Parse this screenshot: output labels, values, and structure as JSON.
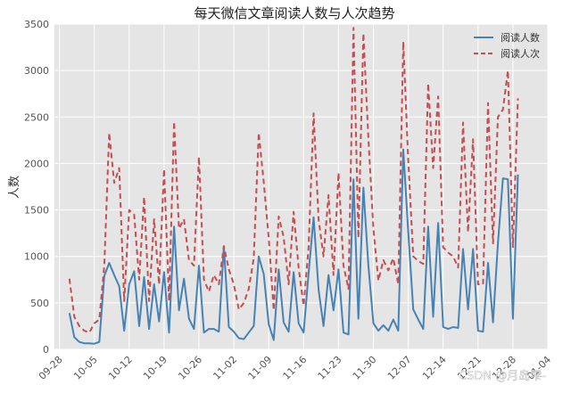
{
  "chart_data": {
    "type": "line",
    "title": "每天微信文章阅读人数与人次趋势",
    "xlabel": "",
    "ylabel": "人数",
    "ylim": [
      0,
      3500
    ],
    "yticks": [
      0,
      500,
      1000,
      1500,
      2000,
      2500,
      3000,
      3500
    ],
    "xticks": [
      "09-28",
      "10-05",
      "10-12",
      "10-19",
      "10-26",
      "11-02",
      "11-09",
      "11-16",
      "11-23",
      "11-30",
      "12-07",
      "12-14",
      "12-21",
      "12-28",
      "01-04"
    ],
    "grid": true,
    "legend_position": "top-right",
    "x_start": "2015-09-30",
    "series": [
      {
        "name": "阅读人数",
        "color": "#4682b4",
        "style": "solid",
        "values": [
          390,
          130,
          80,
          65,
          65,
          60,
          80,
          790,
          930,
          800,
          680,
          200,
          700,
          840,
          250,
          780,
          220,
          700,
          300,
          830,
          180,
          1320,
          420,
          760,
          330,
          220,
          900,
          180,
          220,
          220,
          190,
          1110,
          240,
          190,
          120,
          110,
          180,
          250,
          1000,
          810,
          270,
          100,
          860,
          290,
          190,
          830,
          280,
          180,
          820,
          1420,
          640,
          250,
          800,
          420,
          860,
          180,
          160,
          1830,
          330,
          1740,
          900,
          280,
          200,
          260,
          200,
          320,
          200,
          2150,
          1260,
          430,
          320,
          220,
          1320,
          350,
          1360,
          240,
          220,
          240,
          230,
          1080,
          430,
          1080,
          200,
          190,
          930,
          290,
          1140,
          1840,
          1830,
          330,
          1880
        ]
      },
      {
        "name": "阅读人次",
        "color": "#c44e52",
        "style": "dashed",
        "values": [
          760,
          350,
          250,
          200,
          180,
          280,
          320,
          900,
          2330,
          1790,
          1950,
          520,
          1500,
          1450,
          750,
          1640,
          520,
          1400,
          700,
          1940,
          520,
          2450,
          1300,
          1400,
          960,
          900,
          2070,
          750,
          620,
          800,
          700,
          1110,
          860,
          700,
          430,
          500,
          650,
          980,
          2330,
          1800,
          1200,
          420,
          1430,
          1210,
          700,
          1480,
          880,
          470,
          1100,
          2540,
          1400,
          1000,
          1660,
          800,
          1900,
          900,
          650,
          3460,
          1200,
          3400,
          2270,
          1300,
          740,
          960,
          850,
          980,
          700,
          3310,
          2030,
          1000,
          950,
          920,
          2860,
          1950,
          2720,
          1100,
          1040,
          1000,
          880,
          2440,
          1260,
          2260,
          700,
          700,
          2650,
          1140,
          2500,
          2580,
          3000,
          1100,
          2700
        ]
      }
    ]
  },
  "watermark": "CSDN @月岛雫-"
}
